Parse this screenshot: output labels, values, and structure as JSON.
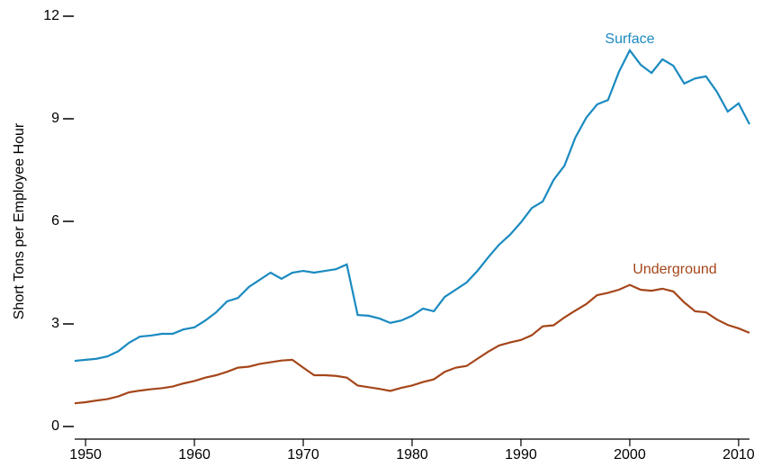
{
  "chart_data": {
    "type": "line",
    "y_label": "Short Tons per Employee Hour",
    "x": [
      1949,
      1950,
      1951,
      1952,
      1953,
      1954,
      1955,
      1956,
      1957,
      1958,
      1959,
      1960,
      1961,
      1962,
      1963,
      1964,
      1965,
      1966,
      1967,
      1968,
      1969,
      1970,
      1971,
      1972,
      1973,
      1974,
      1975,
      1976,
      1977,
      1978,
      1979,
      1980,
      1981,
      1982,
      1983,
      1984,
      1985,
      1986,
      1987,
      1988,
      1989,
      1990,
      1991,
      1992,
      1993,
      1994,
      1995,
      1996,
      1997,
      1998,
      1999,
      2000,
      2001,
      2002,
      2003,
      2004,
      2005,
      2006,
      2007,
      2008,
      2009,
      2010,
      2011
    ],
    "series": [
      {
        "name": "Surface",
        "color": "#1a8ac0",
        "values": [
          1.92,
          1.95,
          1.98,
          2.05,
          2.2,
          2.45,
          2.63,
          2.66,
          2.71,
          2.71,
          2.84,
          2.9,
          3.1,
          3.34,
          3.66,
          3.76,
          4.08,
          4.29,
          4.5,
          4.32,
          4.5,
          4.55,
          4.5,
          4.55,
          4.6,
          4.74,
          3.26,
          3.24,
          3.16,
          3.03,
          3.1,
          3.24,
          3.45,
          3.37,
          3.79,
          4.0,
          4.21,
          4.55,
          4.95,
          5.32,
          5.61,
          5.97,
          6.39,
          6.58,
          7.21,
          7.63,
          8.45,
          9.03,
          9.42,
          9.55,
          10.37,
          11.0,
          10.58,
          10.34,
          10.74,
          10.55,
          10.03,
          10.18,
          10.24,
          9.79,
          9.21,
          9.45,
          8.84
        ]
      },
      {
        "name": "Underground",
        "color": "#a5461a",
        "values": [
          0.68,
          0.71,
          0.76,
          0.8,
          0.88,
          1.0,
          1.05,
          1.09,
          1.12,
          1.17,
          1.26,
          1.33,
          1.43,
          1.5,
          1.6,
          1.72,
          1.75,
          1.83,
          1.88,
          1.93,
          1.95,
          1.72,
          1.5,
          1.5,
          1.48,
          1.43,
          1.2,
          1.15,
          1.1,
          1.04,
          1.13,
          1.2,
          1.3,
          1.38,
          1.6,
          1.72,
          1.77,
          1.98,
          2.19,
          2.37,
          2.46,
          2.53,
          2.67,
          2.93,
          2.96,
          3.19,
          3.39,
          3.58,
          3.84,
          3.91,
          4.0,
          4.14,
          4.0,
          3.97,
          4.03,
          3.95,
          3.63,
          3.37,
          3.34,
          3.13,
          2.97,
          2.87,
          2.74
        ]
      }
    ],
    "xlim": [
      1949,
      2011
    ],
    "ylim": [
      0,
      12
    ],
    "xticks": [
      1950,
      1960,
      1970,
      1980,
      1990,
      2000,
      2010
    ],
    "yticks": [
      0,
      3,
      6,
      9,
      12
    ],
    "grid": false
  }
}
